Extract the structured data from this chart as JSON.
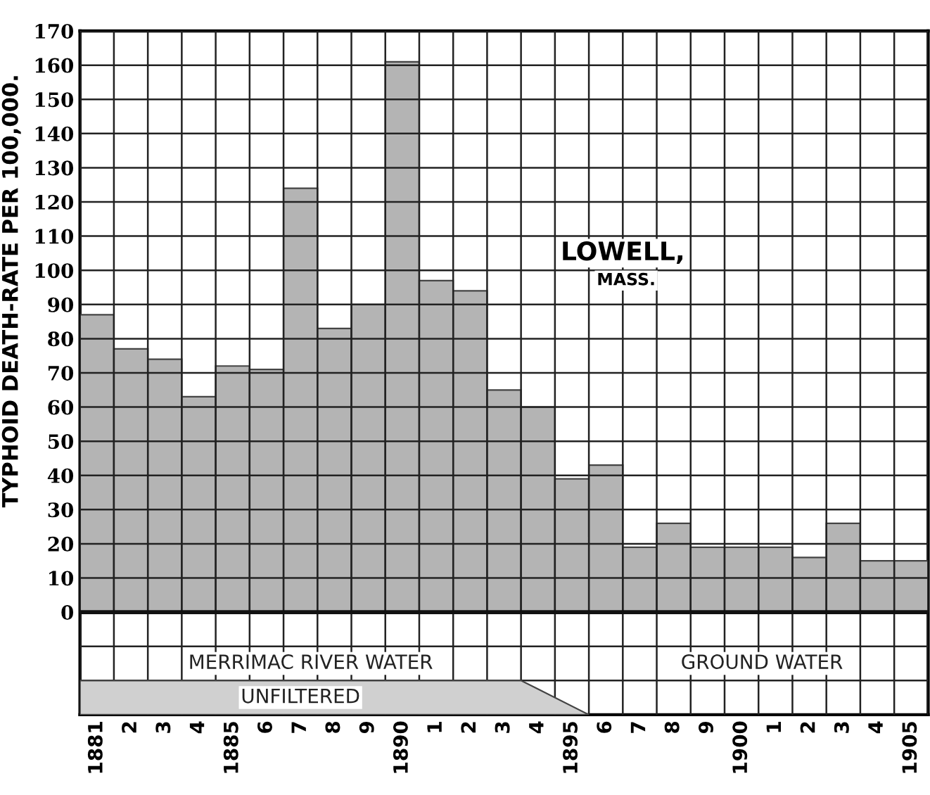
{
  "chart_data": {
    "type": "bar",
    "title": "LOWELL,",
    "subtitle": "MASS.",
    "ylabel": "TYPHOID DEATH-RATE PER 100,000.",
    "categories": [
      "1881",
      "2",
      "3",
      "4",
      "1885",
      "6",
      "7",
      "8",
      "9",
      "1890",
      "1",
      "2",
      "3",
      "4",
      "1895",
      "6",
      "7",
      "8",
      "9",
      "1900",
      "1",
      "2",
      "3",
      "4",
      "1905"
    ],
    "values": [
      87,
      77,
      74,
      63,
      72,
      71,
      124,
      83,
      90,
      161,
      97,
      94,
      65,
      60,
      39,
      43,
      19,
      26,
      19,
      19,
      19,
      16,
      26,
      15,
      15
    ],
    "color": "#b4b4b4",
    "ylim": [
      -30,
      170
    ],
    "yticks": [
      {
        "value": -20,
        "label": null
      },
      {
        "value": -10,
        "label": null
      },
      0,
      10,
      20,
      30,
      40,
      50,
      60,
      70,
      80,
      90,
      100,
      110,
      120,
      130,
      140,
      150,
      160,
      170
    ],
    "grid": true,
    "annotations": [
      "MERRIMAC RIVER WATER",
      "GROUND WATER",
      "UNFILTERED"
    ]
  }
}
